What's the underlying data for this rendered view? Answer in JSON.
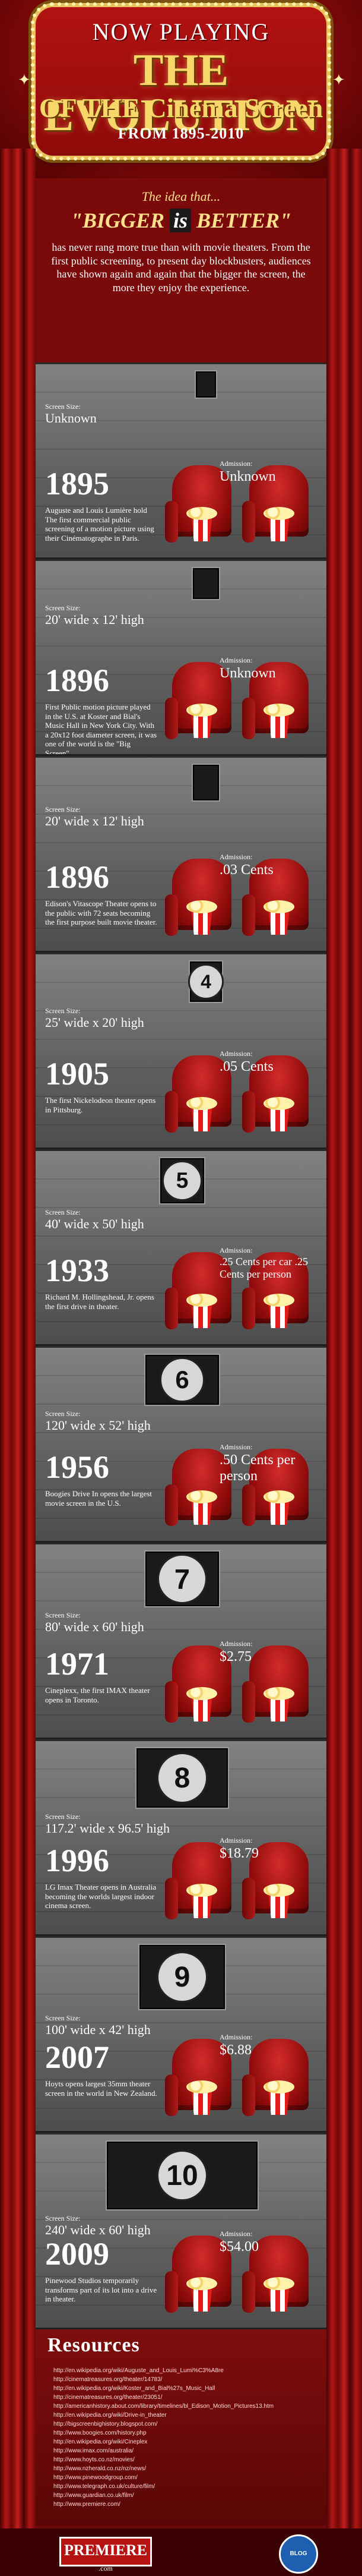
{
  "header": {
    "now_playing": "NOW PLAYING",
    "title_line1": "THE EVOLUTION",
    "title_line2": "OF THE Cinema Screen",
    "date_range": "FROM 1895-2010"
  },
  "intro": {
    "lead": "The idea that...",
    "headline_a": "\"BIGGER",
    "headline_is": "is",
    "headline_b": "BETTER\"",
    "text": "has never rang more true than with movie theaters. From the first public screening, to present day blockbusters, audiences have shown again and again that the bigger the screen, the more they enjoy the experience."
  },
  "labels": {
    "screen_size": "Screen Size:",
    "admission": "Admission:"
  },
  "eras": [
    {
      "year": "1895",
      "screen_size": "Unknown",
      "admission": "Unknown",
      "screen_number": "",
      "description": "Auguste and Louis Lumière hold The first commercial public screening of a motion picture using their Cinématographe in Paris."
    },
    {
      "year": "1896",
      "screen_size": "20' wide x 12' high",
      "admission": "Unknown",
      "screen_number": "",
      "description": "First Public motion picture played in the U.S. at Koster and Bial's Music Hall in New York City. With a 20x12 foot diameter screen, it was one of the world is the \"Big Screen\"."
    },
    {
      "year": "1896",
      "screen_size": "20' wide x 12' high",
      "admission": ".03 Cents",
      "screen_number": "",
      "description": "Edison's Vitascope Theater opens to the public with 72 seats becoming the first purpose built movie theater."
    },
    {
      "year": "1905",
      "screen_size": "25' wide x 20' high",
      "admission": ".05 Cents",
      "screen_number": "4",
      "description": "The first Nickelodeon theater opens in Pittsburg."
    },
    {
      "year": "1933",
      "screen_size": "40' wide x 50' high",
      "admission": ".25 Cents per car .25 Cents per person",
      "screen_number": "5",
      "description": "Richard M. Hollingshead, Jr. opens the first drive in theater."
    },
    {
      "year": "1956",
      "screen_size": "120' wide x 52' high",
      "admission": ".50 Cents per person",
      "screen_number": "6",
      "description": "Boogies Drive In opens the largest movie screen in the U.S."
    },
    {
      "year": "1971",
      "screen_size": "80' wide x 60' high",
      "admission": "$2.75",
      "screen_number": "7",
      "description": "Cineplexx, the first IMAX theater opens in Toronto."
    },
    {
      "year": "1996",
      "screen_size": "117.2' wide x 96.5' high",
      "admission": "$18.79",
      "screen_number": "8",
      "description": "LG Imax Theater opens in Australia becoming the worlds largest indoor cinema screen."
    },
    {
      "year": "2007",
      "screen_size": "100' wide x 42' high",
      "admission": "$6.88",
      "screen_number": "9",
      "description": "Hoyts opens largest 35mm theater screen in the world in New Zealand."
    },
    {
      "year": "2009",
      "screen_size": "240' wide x 60' high",
      "admission": "$54.00",
      "screen_number": "10",
      "description": "Pinewood Studios temporarily transforms part of its lot into a drive in theater."
    }
  ],
  "resources": {
    "title": "Resources",
    "items": [
      "http://en.wikipedia.org/wiki/Auguste_and_Louis_Lumi%C3%A8re",
      "http://cinematreasures.org/theater/14783/",
      "http://en.wikipedia.org/wiki/Koster_and_Bial%27s_Music_Hall",
      "http://cinematreasures.org/theater/23051/",
      "http://americanhistory.about.com/library/timelines/bl_Edison_Motion_Pictures13.htm",
      "http://en.wikipedia.org/wiki/Drive-in_theater",
      "http://bigscreenbighistory.blogspot.com/",
      "http://www.boogies.com/history.php",
      "http://en.wikipedia.org/wiki/Cineplex",
      "http://www.imax.com/australia/",
      "http://www.hoyts.co.nz/movies/",
      "http://www.nzherald.co.nz/nz/news/",
      "http://www.pinewoodgroup.com/",
      "http://www.telegraph.co.uk/culture/film/",
      "http://www.guardian.co.uk/film/",
      "http://www.premiere.com/"
    ]
  },
  "footer": {
    "logo": "PREMIERE",
    "logo_sub": ".com",
    "partner": "BLOG"
  }
}
